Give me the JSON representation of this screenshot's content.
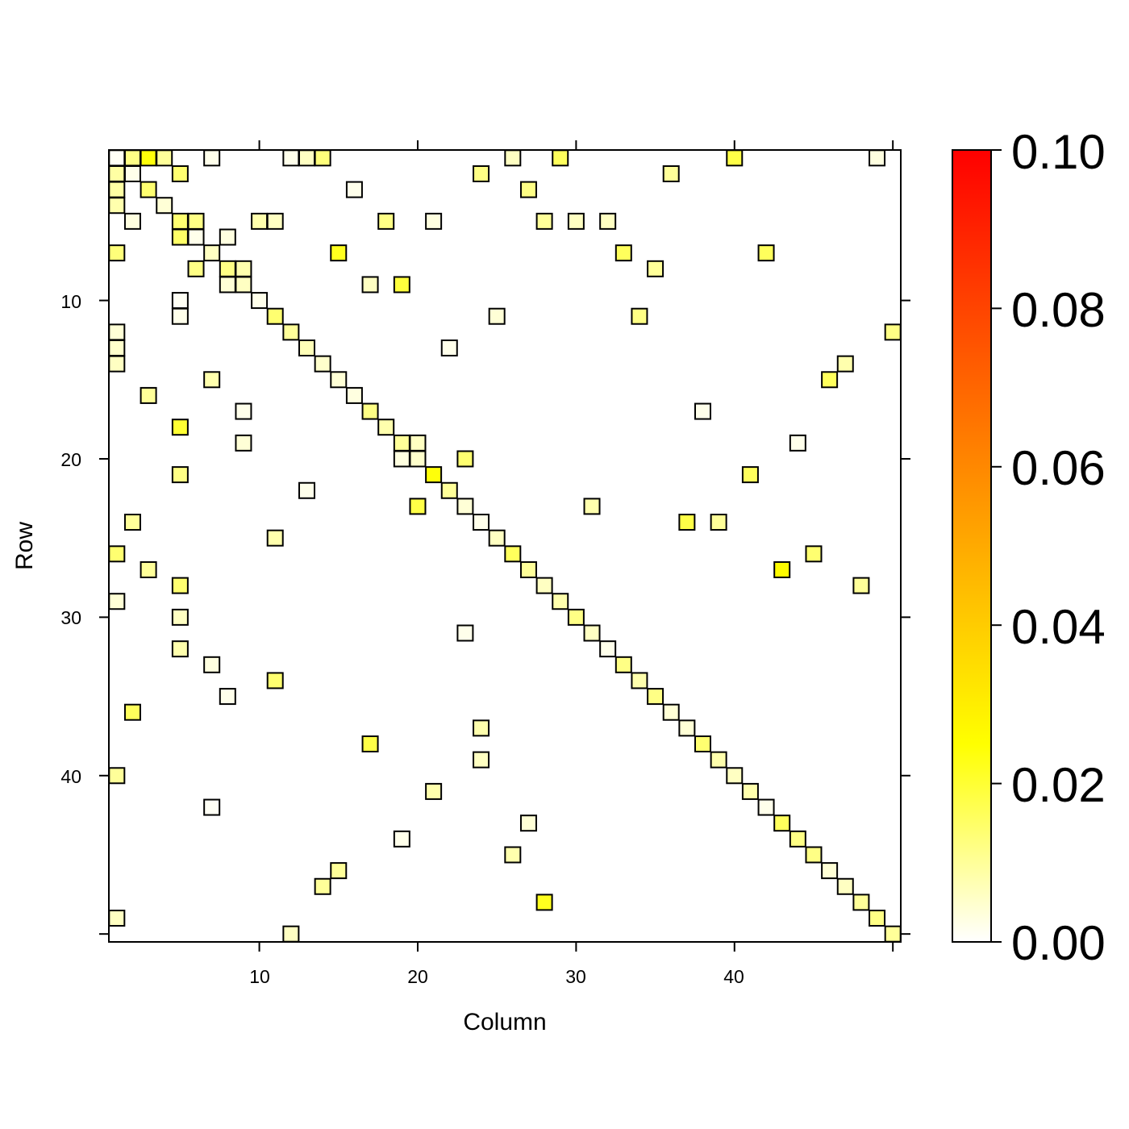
{
  "chart_data": {
    "type": "heatmap",
    "title": "",
    "xlabel": "Column",
    "ylabel": "Row",
    "x_ticks": [
      "10",
      "20",
      "30",
      "40"
    ],
    "y_ticks": [
      "10",
      "20",
      "30",
      "40"
    ],
    "xlim": [
      0.5,
      50.5
    ],
    "ylim": [
      50.5,
      0.5
    ],
    "colorbar": {
      "ticks": [
        "0.00",
        "0.02",
        "0.04",
        "0.06",
        "0.08",
        "0.10"
      ],
      "range": [
        0,
        0.1
      ],
      "colors": [
        "#ffffff",
        "#ffff00",
        "#ff9900",
        "#ff0000"
      ]
    },
    "cells": [
      [
        1,
        1,
        0.001
      ],
      [
        1,
        2,
        0.012
      ],
      [
        1,
        3,
        0.024
      ],
      [
        1,
        4,
        0.01
      ],
      [
        1,
        7,
        0.002
      ],
      [
        1,
        12,
        0.002
      ],
      [
        1,
        13,
        0.006
      ],
      [
        1,
        14,
        0.013
      ],
      [
        1,
        26,
        0.006
      ],
      [
        1,
        29,
        0.016
      ],
      [
        1,
        40,
        0.018
      ],
      [
        1,
        49,
        0.003
      ],
      [
        2,
        1,
        0.009
      ],
      [
        2,
        2,
        0.002
      ],
      [
        2,
        5,
        0.014
      ],
      [
        2,
        24,
        0.012
      ],
      [
        2,
        36,
        0.01
      ],
      [
        3,
        1,
        0.009
      ],
      [
        3,
        3,
        0.014
      ],
      [
        3,
        16,
        0.002
      ],
      [
        3,
        27,
        0.012
      ],
      [
        4,
        1,
        0.008
      ],
      [
        4,
        4,
        0.004
      ],
      [
        5,
        2,
        0.003
      ],
      [
        5,
        5,
        0.014
      ],
      [
        5,
        6,
        0.012
      ],
      [
        5,
        10,
        0.008
      ],
      [
        5,
        11,
        0.006
      ],
      [
        5,
        18,
        0.012
      ],
      [
        5,
        21,
        0.003
      ],
      [
        5,
        28,
        0.01
      ],
      [
        5,
        30,
        0.006
      ],
      [
        5,
        32,
        0.006
      ],
      [
        6,
        5,
        0.015
      ],
      [
        6,
        6,
        0.002
      ],
      [
        6,
        8,
        0.003
      ],
      [
        7,
        1,
        0.013
      ],
      [
        7,
        7,
        0.006
      ],
      [
        7,
        15,
        0.022
      ],
      [
        7,
        33,
        0.016
      ],
      [
        7,
        42,
        0.016
      ],
      [
        8,
        6,
        0.012
      ],
      [
        8,
        8,
        0.012
      ],
      [
        8,
        9,
        0.008
      ],
      [
        8,
        35,
        0.01
      ],
      [
        9,
        8,
        0.004
      ],
      [
        9,
        9,
        0.006
      ],
      [
        9,
        17,
        0.006
      ],
      [
        9,
        19,
        0.019
      ],
      [
        10,
        5,
        0.001
      ],
      [
        10,
        10,
        0.002
      ],
      [
        11,
        5,
        0.002
      ],
      [
        11,
        11,
        0.014
      ],
      [
        11,
        25,
        0.004
      ],
      [
        11,
        34,
        0.012
      ],
      [
        12,
        1,
        0.004
      ],
      [
        12,
        12,
        0.01
      ],
      [
        12,
        50,
        0.012
      ],
      [
        13,
        1,
        0.005
      ],
      [
        13,
        13,
        0.007
      ],
      [
        13,
        22,
        0.002
      ],
      [
        14,
        1,
        0.006
      ],
      [
        14,
        14,
        0.005
      ],
      [
        14,
        47,
        0.008
      ],
      [
        15,
        7,
        0.008
      ],
      [
        15,
        15,
        0.004
      ],
      [
        15,
        46,
        0.016
      ],
      [
        16,
        3,
        0.01
      ],
      [
        16,
        16,
        0.003
      ],
      [
        17,
        9,
        0.002
      ],
      [
        17,
        17,
        0.012
      ],
      [
        17,
        38,
        0.002
      ],
      [
        18,
        5,
        0.02
      ],
      [
        18,
        18,
        0.008
      ],
      [
        19,
        9,
        0.004
      ],
      [
        19,
        19,
        0.01
      ],
      [
        19,
        20,
        0.006
      ],
      [
        19,
        44,
        0.002
      ],
      [
        20,
        19,
        0.003
      ],
      [
        20,
        20,
        0.005
      ],
      [
        20,
        23,
        0.014
      ],
      [
        21,
        5,
        0.012
      ],
      [
        21,
        21,
        0.024
      ],
      [
        21,
        41,
        0.016
      ],
      [
        22,
        13,
        0.002
      ],
      [
        22,
        22,
        0.01
      ],
      [
        23,
        20,
        0.018
      ],
      [
        23,
        23,
        0.004
      ],
      [
        23,
        31,
        0.008
      ],
      [
        24,
        2,
        0.01
      ],
      [
        24,
        24,
        0.002
      ],
      [
        24,
        37,
        0.018
      ],
      [
        24,
        39,
        0.01
      ],
      [
        25,
        11,
        0.008
      ],
      [
        25,
        25,
        0.006
      ],
      [
        26,
        1,
        0.014
      ],
      [
        26,
        26,
        0.016
      ],
      [
        26,
        45,
        0.014
      ],
      [
        27,
        3,
        0.01
      ],
      [
        27,
        27,
        0.01
      ],
      [
        27,
        43,
        0.026
      ],
      [
        28,
        5,
        0.014
      ],
      [
        28,
        28,
        0.006
      ],
      [
        28,
        48,
        0.01
      ],
      [
        29,
        1,
        0.004
      ],
      [
        29,
        29,
        0.008
      ],
      [
        30,
        5,
        0.006
      ],
      [
        30,
        30,
        0.012
      ],
      [
        31,
        23,
        0.002
      ],
      [
        31,
        31,
        0.006
      ],
      [
        32,
        5,
        0.008
      ],
      [
        32,
        32,
        0.002
      ],
      [
        33,
        7,
        0.003
      ],
      [
        33,
        33,
        0.012
      ],
      [
        34,
        11,
        0.014
      ],
      [
        34,
        34,
        0.008
      ],
      [
        35,
        8,
        0.002
      ],
      [
        35,
        35,
        0.012
      ],
      [
        36,
        2,
        0.016
      ],
      [
        36,
        36,
        0.004
      ],
      [
        37,
        24,
        0.008
      ],
      [
        37,
        37,
        0.004
      ],
      [
        38,
        17,
        0.018
      ],
      [
        38,
        38,
        0.014
      ],
      [
        39,
        24,
        0.006
      ],
      [
        39,
        39,
        0.008
      ],
      [
        40,
        1,
        0.01
      ],
      [
        40,
        40,
        0.006
      ],
      [
        41,
        21,
        0.008
      ],
      [
        41,
        41,
        0.008
      ],
      [
        42,
        7,
        0.001
      ],
      [
        42,
        42,
        0.002
      ],
      [
        43,
        27,
        0.004
      ],
      [
        43,
        43,
        0.016
      ],
      [
        44,
        19,
        0.002
      ],
      [
        44,
        44,
        0.012
      ],
      [
        45,
        26,
        0.008
      ],
      [
        45,
        45,
        0.012
      ],
      [
        46,
        15,
        0.01
      ],
      [
        46,
        46,
        0.004
      ],
      [
        47,
        14,
        0.01
      ],
      [
        47,
        47,
        0.006
      ],
      [
        48,
        28,
        0.022
      ],
      [
        48,
        48,
        0.01
      ],
      [
        49,
        1,
        0.006
      ],
      [
        49,
        49,
        0.012
      ],
      [
        50,
        12,
        0.006
      ],
      [
        50,
        50,
        0.01
      ]
    ]
  }
}
